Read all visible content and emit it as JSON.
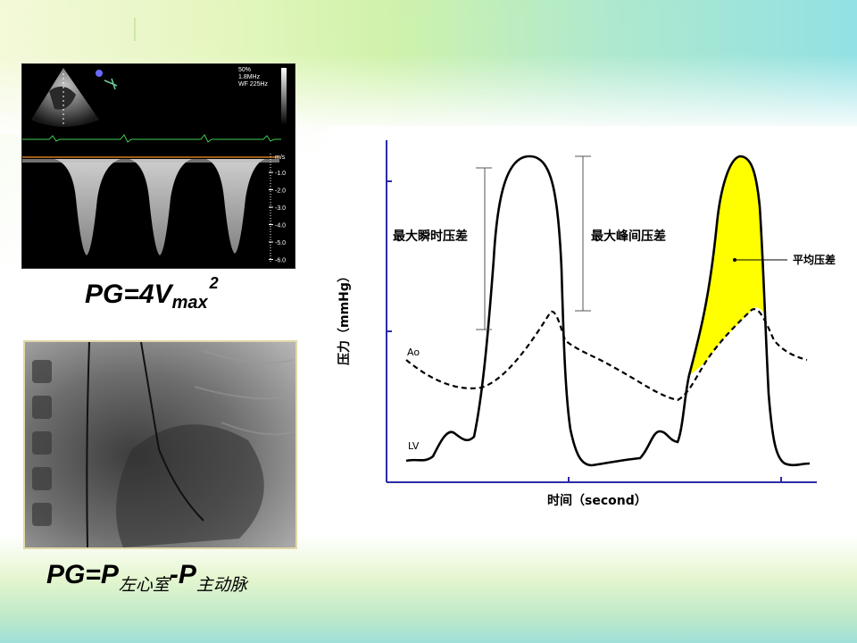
{
  "echo": {
    "settings": [
      "50%",
      "1.8MHz",
      "WF 225Hz"
    ],
    "axis_unit": "m/s",
    "axis_ticks": [
      "-1.0",
      "-2.0",
      "-3.0",
      "-4.0",
      "-5.0",
      "-6.0"
    ]
  },
  "formula1": {
    "main": "PG=4V",
    "sub": "max",
    "sup": "2"
  },
  "formula2": {
    "p1": "PG=P",
    "sub1": "左心室",
    "p2": "-P",
    "sub2": "主动脉"
  },
  "colors": {
    "mean_gradient_fill": "#ffff00",
    "axis": "#2b2ba8",
    "curve": "#000000"
  },
  "chart_data": {
    "type": "line",
    "series": [
      {
        "name": "Ao",
        "style": "dashed"
      },
      {
        "name": "LV",
        "style": "solid"
      }
    ],
    "xlabel": "时间（second）",
    "ylabel": "压力（mmHg）",
    "annotations": {
      "peak_instant": "最大瞬时压差",
      "peak_to_peak": "最大峰间压差",
      "mean": "平均压差"
    }
  }
}
